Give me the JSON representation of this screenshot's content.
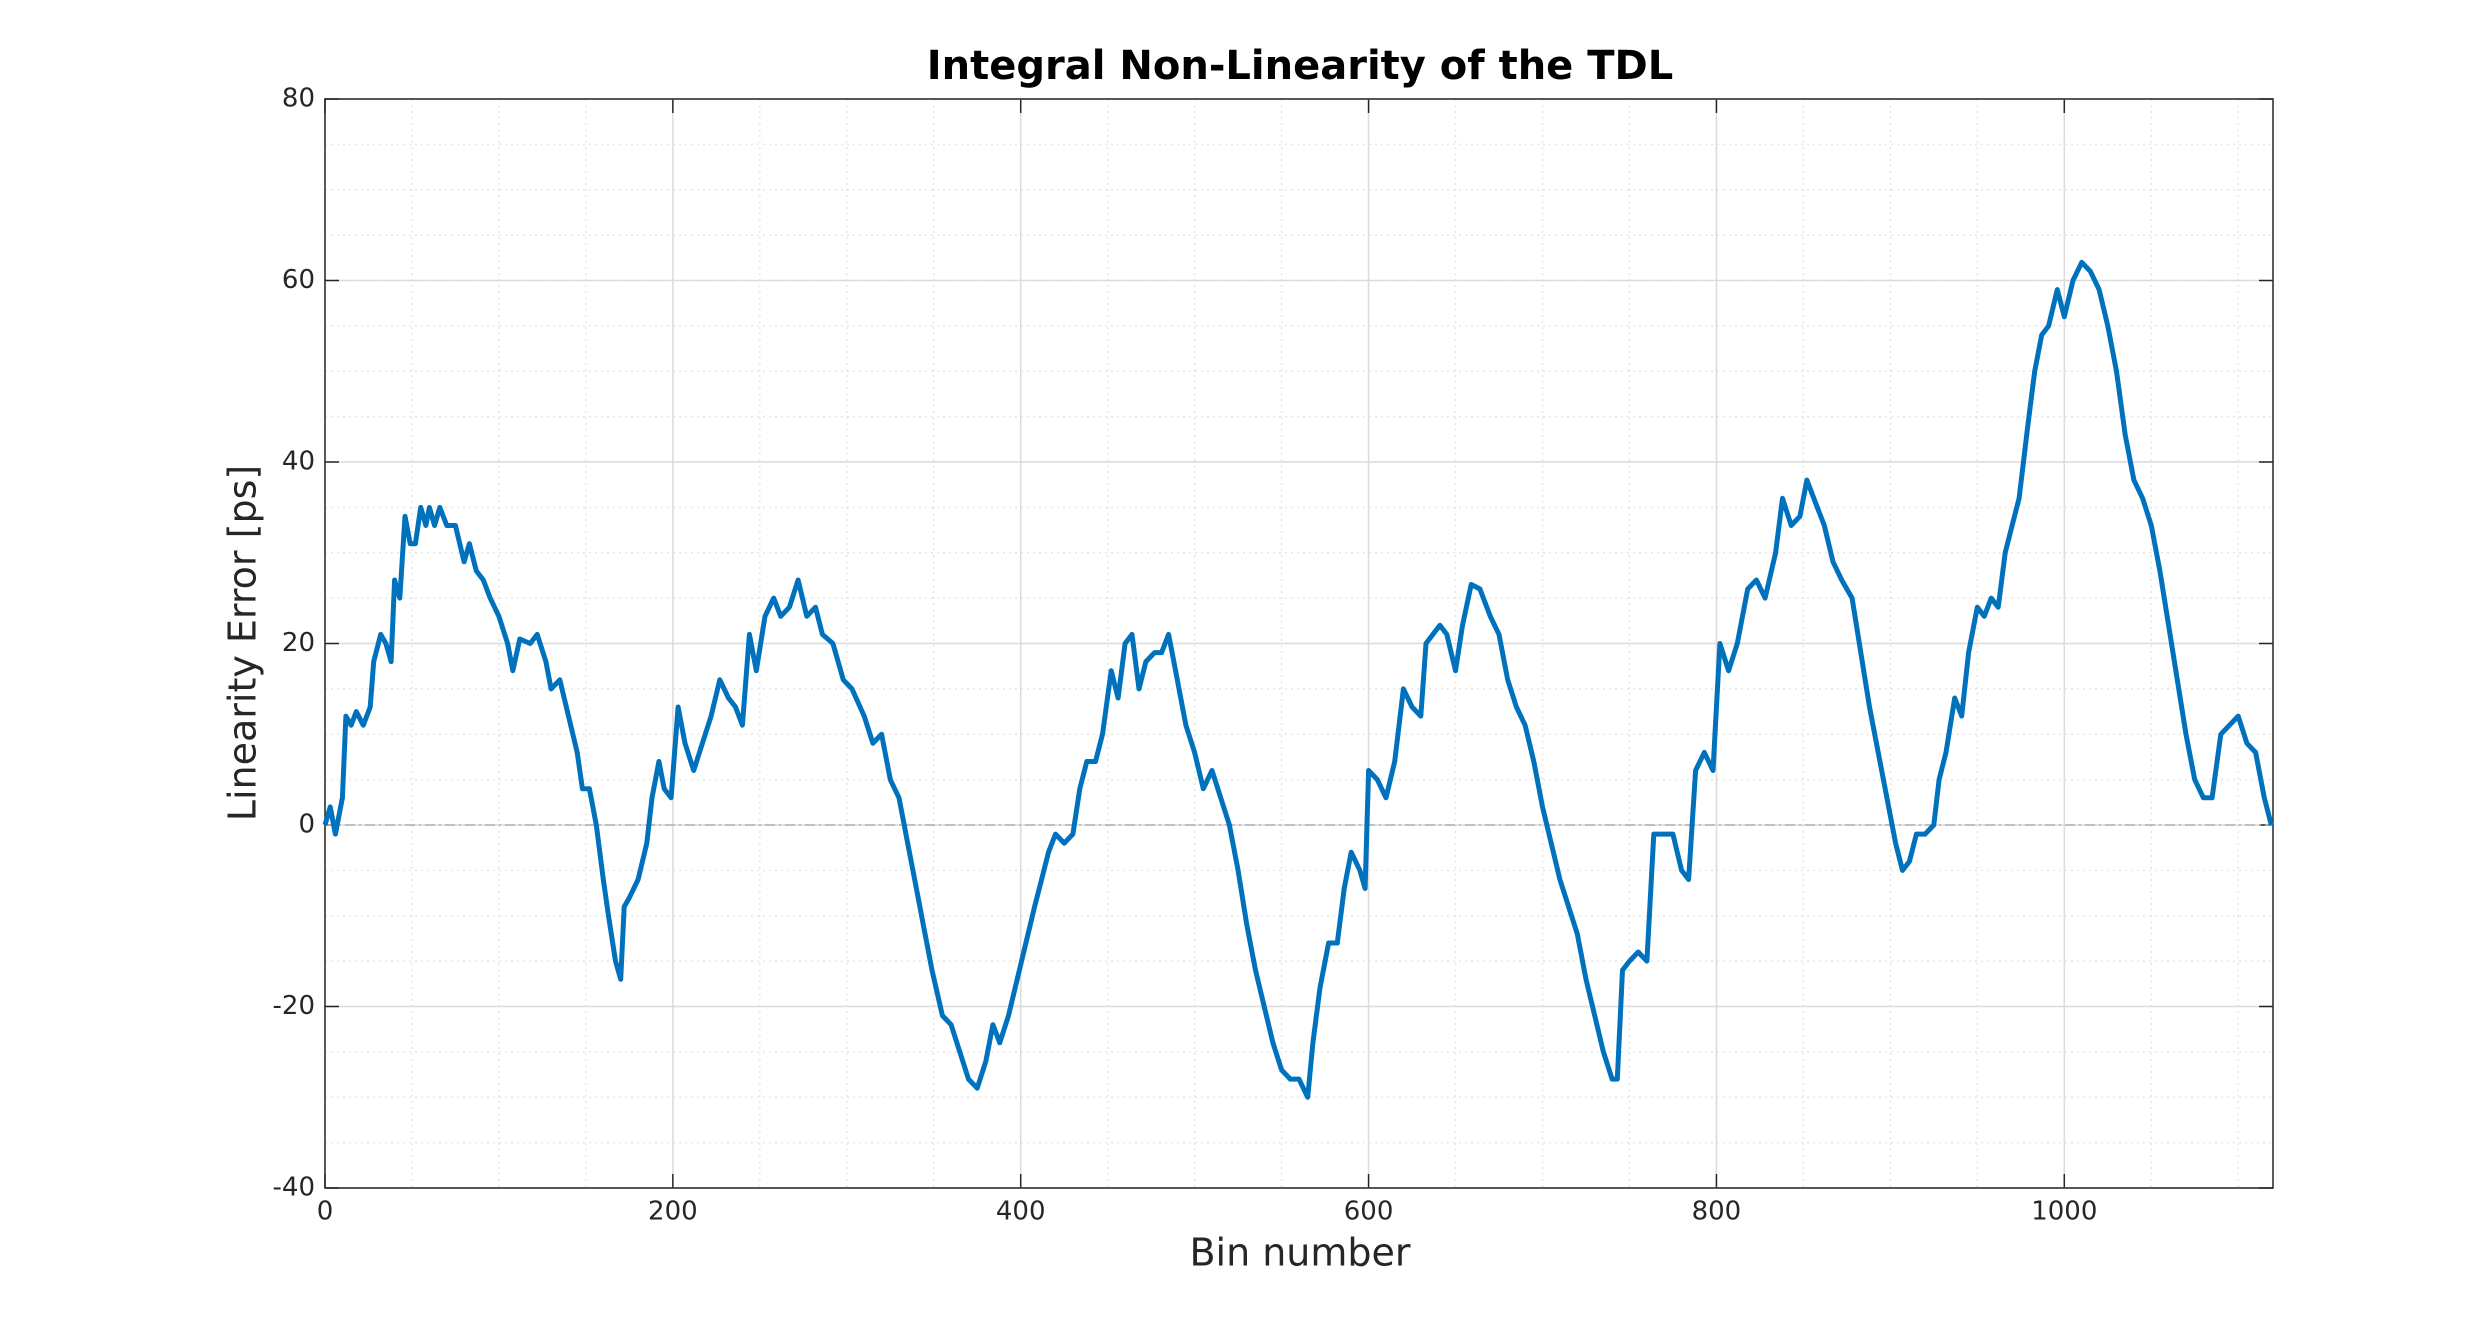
{
  "chart_data": {
    "type": "line",
    "title": "Integral Non-Linearity of the TDL",
    "x_label": "Bin number",
    "y_label": "Linearity Error [ps]",
    "color": "#0072bd",
    "grid": true,
    "minor_grid": true,
    "hline": 0,
    "xlim": [
      0,
      1120
    ],
    "ylim": [
      -40,
      80
    ],
    "xticks": [
      0,
      200,
      400,
      600,
      800,
      1000
    ],
    "yticks": [
      -40,
      -20,
      0,
      20,
      40,
      60,
      80
    ],
    "x": [
      0,
      3,
      6,
      10,
      12,
      15,
      18,
      22,
      26,
      28,
      32,
      35,
      38,
      40,
      43,
      46,
      49,
      52,
      55,
      58,
      60,
      63,
      66,
      70,
      75,
      80,
      83,
      87,
      91,
      95,
      100,
      105,
      108,
      112,
      118,
      122,
      127,
      130,
      135,
      140,
      145,
      148,
      152,
      156,
      160,
      163,
      167,
      170,
      172,
      175,
      180,
      185,
      188,
      192,
      195,
      199,
      203,
      207,
      212,
      217,
      222,
      227,
      232,
      236,
      240,
      244,
      248,
      253,
      258,
      262,
      267,
      272,
      277,
      282,
      286,
      292,
      298,
      303,
      310,
      315,
      320,
      325,
      330,
      336,
      340,
      344,
      349,
      355,
      360,
      365,
      370,
      375,
      380,
      384,
      388,
      393,
      398,
      403,
      408,
      412,
      416,
      420,
      425,
      430,
      434,
      438,
      443,
      447,
      452,
      456,
      460,
      464,
      468,
      472,
      477,
      481,
      485,
      490,
      495,
      500,
      505,
      510,
      515,
      520,
      525,
      530,
      535,
      540,
      545,
      550,
      555,
      560,
      565,
      568,
      572,
      577,
      582,
      586,
      590,
      595,
      598,
      600,
      605,
      610,
      615,
      620,
      625,
      630,
      633,
      637,
      641,
      645,
      650,
      654,
      659,
      664,
      670,
      675,
      680,
      685,
      690,
      695,
      700,
      705,
      710,
      715,
      720,
      725,
      730,
      735,
      740,
      743,
      746,
      750,
      755,
      760,
      764,
      770,
      775,
      780,
      784,
      788,
      793,
      798,
      802,
      807,
      812,
      818,
      823,
      828,
      834,
      838,
      843,
      848,
      852,
      856,
      862,
      867,
      872,
      878,
      883,
      888,
      893,
      898,
      903,
      907,
      911,
      915,
      920,
      925,
      928,
      932,
      937,
      941,
      945,
      950,
      954,
      958,
      962,
      966,
      970,
      974,
      979,
      983,
      987,
      991,
      996,
      1000,
      1005,
      1010,
      1015,
      1020,
      1025,
      1030,
      1035,
      1040,
      1045,
      1050,
      1055,
      1060,
      1065,
      1070,
      1075,
      1080,
      1085,
      1090,
      1095,
      1100,
      1105,
      1110,
      1115,
      1119
    ],
    "values": [
      0,
      2,
      -1,
      3,
      12,
      11,
      12.5,
      11,
      13,
      18,
      21,
      20,
      18,
      27,
      25,
      34,
      31,
      31,
      35,
      33,
      35,
      33,
      35,
      33,
      33,
      29,
      31,
      28,
      27,
      25,
      23,
      20,
      17,
      20.5,
      20,
      21,
      18,
      15,
      16,
      12,
      8,
      4,
      4,
      0,
      -6,
      -10,
      -15,
      -17,
      -9,
      -8,
      -6,
      -2,
      3,
      7,
      4,
      3,
      13,
      9,
      6,
      9,
      12,
      16,
      14,
      13,
      11,
      21,
      17,
      23,
      25,
      23,
      24,
      27,
      23,
      24,
      21,
      20,
      16,
      15,
      12,
      9,
      10,
      5,
      3,
      -3,
      -7,
      -11,
      -16,
      -21,
      -22,
      -25,
      -28,
      -29,
      -26,
      -22,
      -24,
      -21,
      -17,
      -13,
      -9,
      -6,
      -3,
      -1,
      -2,
      -1,
      4,
      7,
      7,
      10,
      17,
      14,
      20,
      21,
      15,
      18,
      19,
      19,
      21,
      16,
      11,
      8,
      4,
      6,
      3,
      0,
      -5,
      -11,
      -16,
      -20,
      -24,
      -27,
      -28,
      -28,
      -30,
      -24,
      -18,
      -13,
      -13,
      -7,
      -3,
      -5,
      -7,
      6,
      5,
      3,
      7,
      15,
      13,
      12,
      20,
      21,
      22,
      21,
      17,
      22,
      26.5,
      26,
      23,
      21,
      16,
      13,
      11,
      7,
      2,
      -2,
      -6,
      -9,
      -12,
      -17,
      -21,
      -25,
      -28,
      -28,
      -16,
      -15,
      -14,
      -15,
      -1,
      -1,
      -1,
      -5,
      -6,
      6,
      8,
      6,
      20,
      17,
      20,
      26,
      27,
      25,
      30,
      36,
      33,
      34,
      38,
      36,
      33,
      29,
      27,
      25,
      19,
      13,
      8,
      3,
      -2,
      -5,
      -4,
      -1,
      -1,
      0,
      5,
      8,
      14,
      12,
      19,
      24,
      23,
      25,
      24,
      30,
      33,
      36,
      44,
      50,
      54,
      55,
      59,
      56,
      60,
      62,
      61,
      59,
      55,
      50,
      43,
      38,
      36,
      33,
      28,
      22,
      16,
      10,
      5,
      3,
      3,
      10,
      11,
      12,
      9,
      8,
      3,
      0
    ]
  }
}
